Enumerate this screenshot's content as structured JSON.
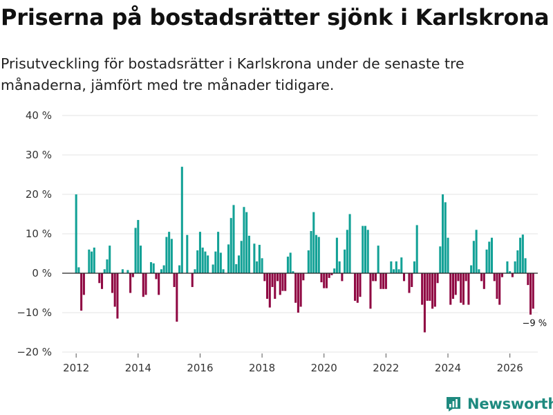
{
  "title": "Priserna på bostadsrätter sjönk i Karlskrona",
  "subtitle": "Prisutveckling för bostadsrätter i Karlskrona under de senaste tre månaderna, jämfört med tre månader tidigare.",
  "brand": {
    "name": "Newsworthy",
    "icon": "bar-chart-logo-icon"
  },
  "colors": {
    "positive": "#12a196",
    "negative": "#8f0742",
    "grid": "#e3e3e3",
    "zero_line": "#222222"
  },
  "chart_data": {
    "type": "bar",
    "title": "Priserna på bostadsrätter sjönk i Karlskrona",
    "xlabel": "",
    "ylabel": "",
    "ylim": [
      -20,
      40
    ],
    "xlim": [
      2011.55,
      2026.9
    ],
    "y_ticks": [
      -20,
      -10,
      0,
      10,
      20,
      30,
      40
    ],
    "y_tick_labels": [
      "−20 %",
      "−10 %",
      "0 %",
      "10 %",
      "20 %",
      "30 %",
      "40 %"
    ],
    "x_ticks": [
      2012,
      2014,
      2016,
      2018,
      2020,
      2022,
      2024,
      2026
    ],
    "x_tick_labels": [
      "2012",
      "2014",
      "2016",
      "2018",
      "2020",
      "2022",
      "2024",
      "2026"
    ],
    "start": {
      "year": 2012,
      "month": 1
    },
    "frequency": "monthly",
    "values": [
      20,
      1.5,
      -9.5,
      -5.5,
      0,
      6,
      5.5,
      6.5,
      0,
      -2.5,
      -4,
      1,
      3.5,
      7,
      -5,
      -8.5,
      -11.5,
      0,
      1,
      0,
      0.8,
      -5,
      -1,
      11.5,
      13.5,
      7,
      -6,
      -5.5,
      0,
      2.8,
      2.5,
      -1.5,
      -5.5,
      1,
      2,
      9.2,
      10.5,
      8.7,
      -3.5,
      -12.3,
      2,
      27,
      0,
      9.7,
      0,
      -3.5,
      1,
      5.8,
      10.5,
      6.5,
      5.5,
      4.5,
      0,
      2.2,
      5.5,
      10.5,
      5.2,
      1,
      0,
      7.3,
      14,
      17.3,
      2.3,
      4.5,
      8.2,
      16.8,
      15.5,
      9.5,
      0,
      7.5,
      3,
      7.2,
      3.8,
      -2,
      -6.5,
      -8.7,
      -3.5,
      -6.5,
      -2,
      -5.5,
      -4.5,
      -4.5,
      4.2,
      5.2,
      0.5,
      -7.5,
      -10,
      -8.5,
      -1.8,
      0,
      5.8,
      10.7,
      15.5,
      9.7,
      9.2,
      -2.3,
      -3.8,
      -3.8,
      -1.2,
      -0.5,
      1.2,
      9,
      3,
      -2,
      6,
      11,
      15,
      0,
      -7,
      -7.5,
      -6,
      12,
      12,
      11,
      -9,
      -2,
      -2,
      7,
      -4,
      -4,
      -4,
      0,
      3,
      1,
      3,
      1,
      4,
      -2,
      0,
      -5,
      -3.5,
      3,
      12.2,
      0,
      -8,
      -15,
      -7,
      -7,
      -9,
      -8.5,
      -2.5,
      6.8,
      20,
      18,
      9,
      -8,
      -6.5,
      -5.5,
      -2,
      -7.5,
      -8,
      -2,
      -8,
      2,
      8.2,
      11,
      1,
      -2,
      -4,
      6,
      8,
      9,
      -2,
      -6.5,
      -8,
      -1,
      0,
      3,
      0.5,
      -1,
      3,
      5.8,
      9,
      9.8,
      3.8,
      -3,
      -10.5,
      -9
    ],
    "annotation": {
      "text": "−9 %",
      "target": "last"
    }
  }
}
